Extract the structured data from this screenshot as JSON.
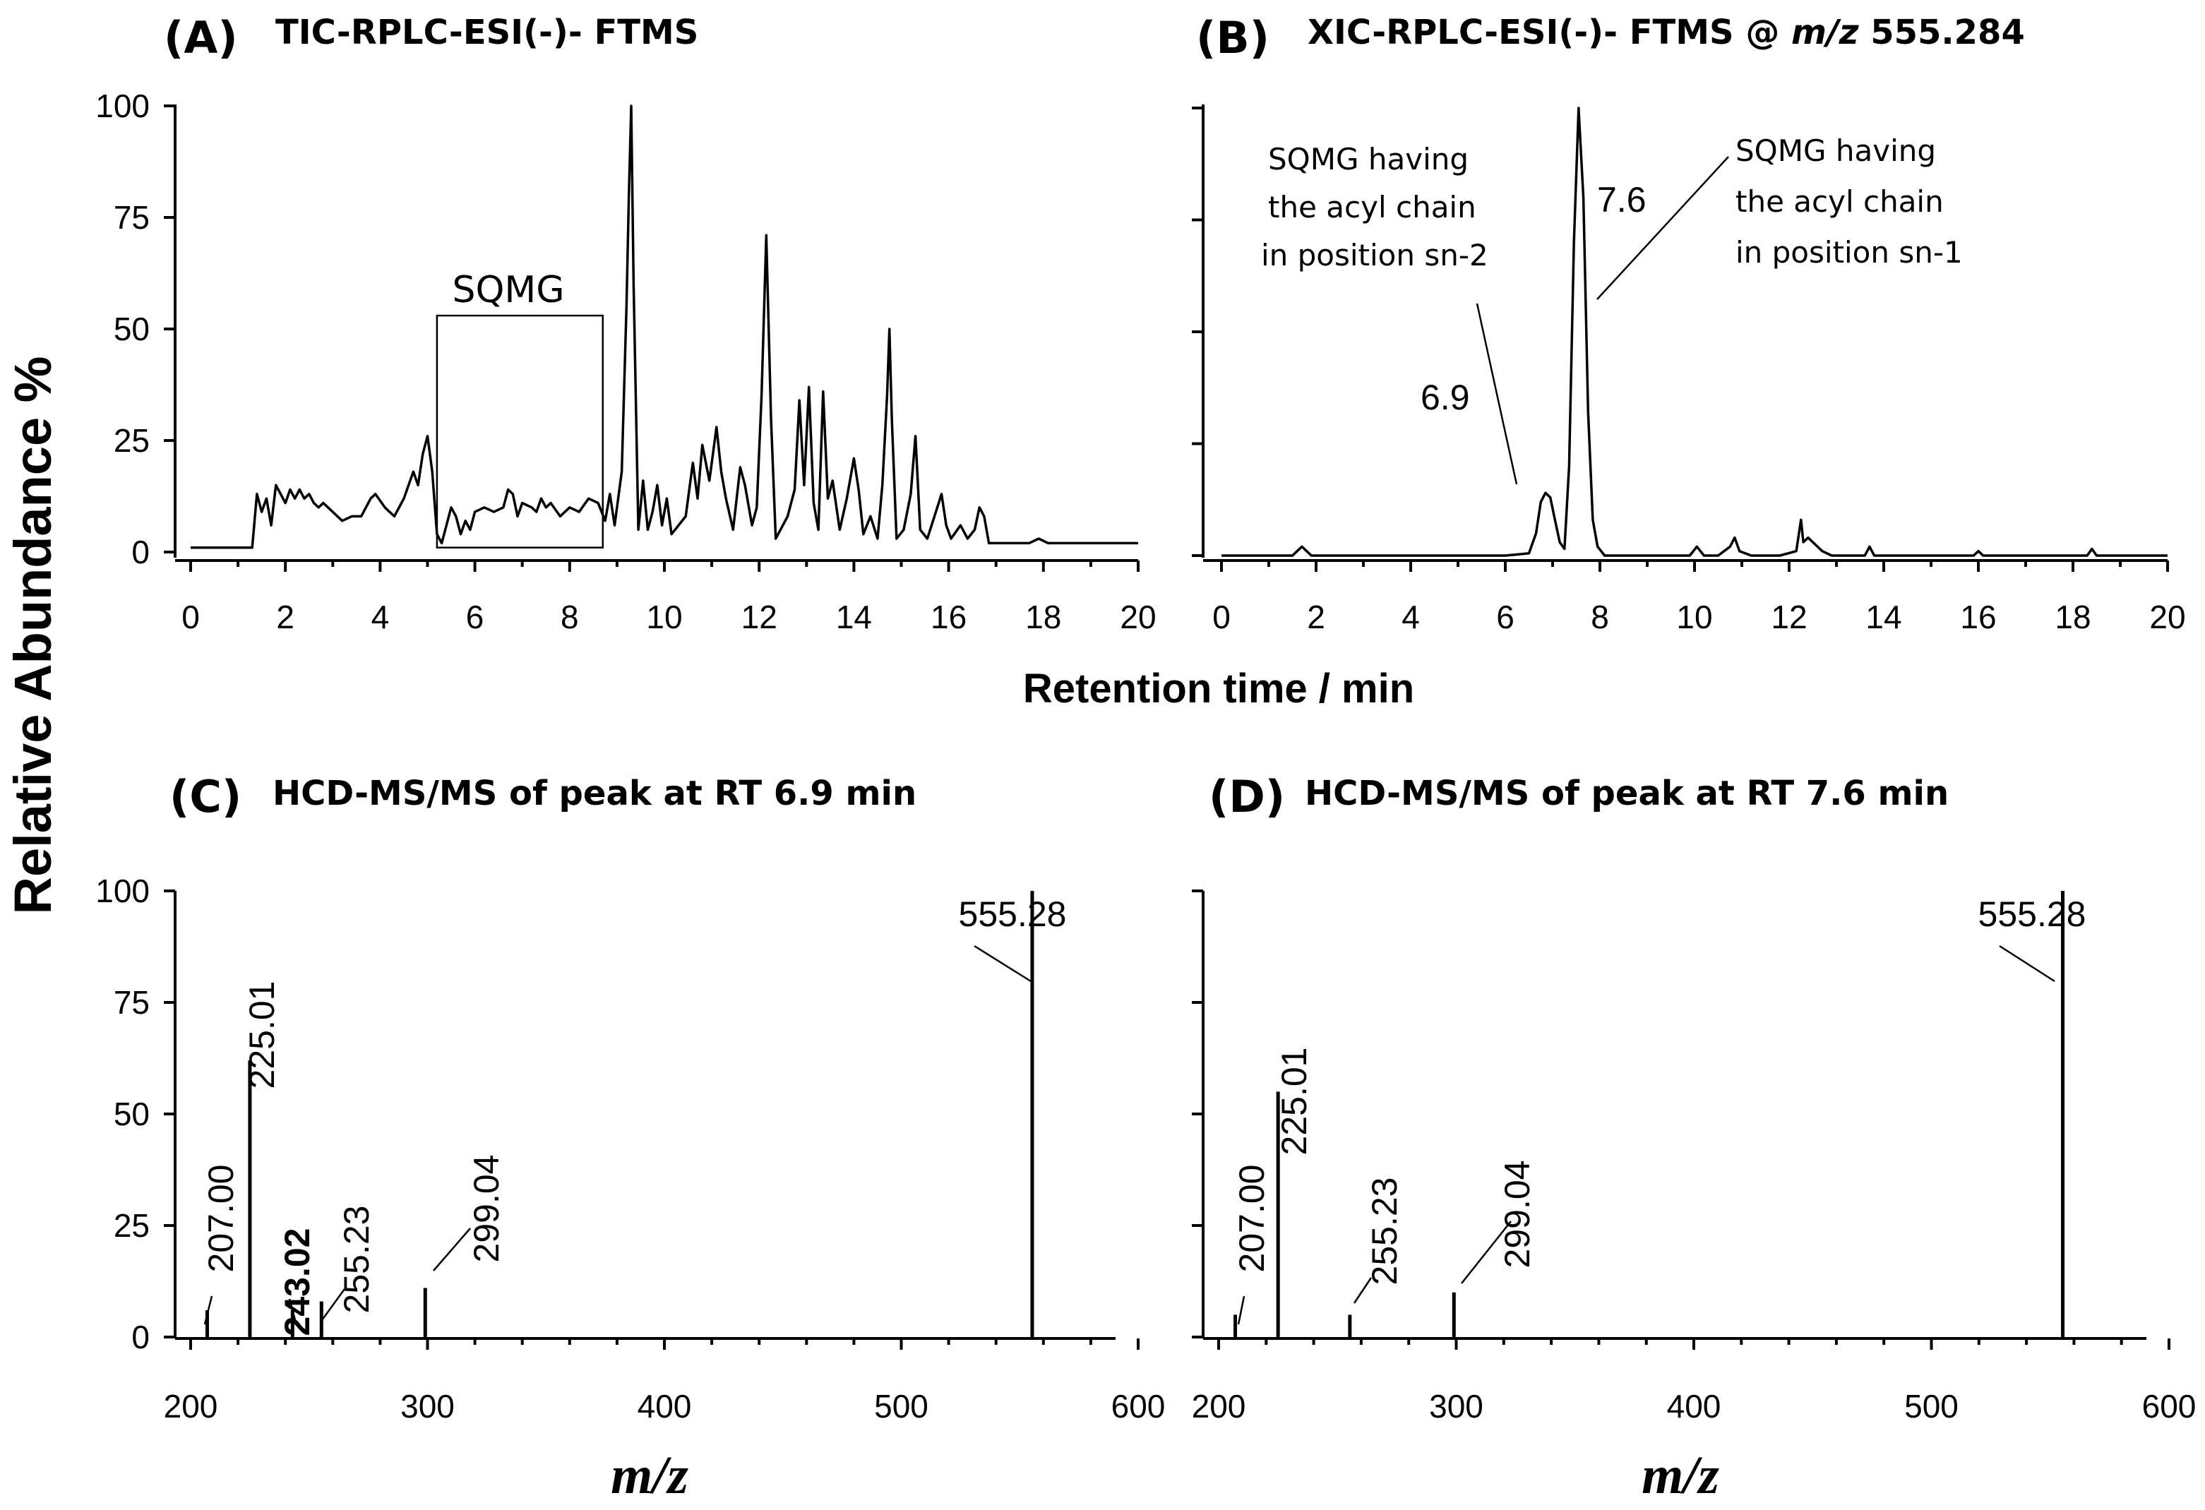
{
  "figure": {
    "y_label": "Relative Abundance %",
    "x_label_top": "Retention time / min",
    "x_label_bottom": "m/z"
  },
  "chart_data": [
    {
      "id": "A",
      "letter": "(A)",
      "title": "TIC-RPLC-ESI(-)- FTMS",
      "type": "line",
      "xlim": [
        0,
        20
      ],
      "ylim": [
        0,
        100
      ],
      "xticks": [
        0,
        2,
        4,
        6,
        8,
        10,
        12,
        14,
        16,
        18,
        20
      ],
      "yticks": [
        0,
        25,
        50,
        75,
        100
      ],
      "box_label": "SQMG",
      "box_range": {
        "x": [
          5.2,
          8.7
        ],
        "y": [
          1,
          53
        ]
      },
      "x": [
        0,
        1.3,
        1.4,
        1.5,
        1.6,
        1.7,
        1.8,
        1.9,
        2,
        2.1,
        2.2,
        2.3,
        2.4,
        2.5,
        2.6,
        2.7,
        2.8,
        2.9,
        3,
        3.2,
        3.4,
        3.6,
        3.8,
        3.9,
        4.1,
        4.3,
        4.5,
        4.7,
        4.8,
        4.9,
        5,
        5.1,
        5.2,
        5.3,
        5.4,
        5.5,
        5.6,
        5.7,
        5.8,
        5.9,
        6,
        6.2,
        6.4,
        6.6,
        6.7,
        6.8,
        6.9,
        7,
        7.2,
        7.3,
        7.4,
        7.5,
        7.6,
        7.8,
        8,
        8.2,
        8.4,
        8.6,
        8.75,
        8.85,
        8.95,
        9.1,
        9.2,
        9.25,
        9.3,
        9.35,
        9.45,
        9.55,
        9.65,
        9.75,
        9.85,
        9.95,
        10.05,
        10.15,
        10.3,
        10.45,
        10.6,
        10.7,
        10.8,
        10.95,
        11.1,
        11.2,
        11.3,
        11.45,
        11.6,
        11.7,
        11.85,
        11.95,
        12.05,
        12.15,
        12.25,
        12.35,
        12.45,
        12.6,
        12.75,
        12.85,
        12.95,
        13.05,
        13.15,
        13.25,
        13.35,
        13.45,
        13.55,
        13.7,
        13.85,
        14,
        14.1,
        14.2,
        14.35,
        14.5,
        14.6,
        14.7,
        14.75,
        14.8,
        14.9,
        15.05,
        15.2,
        15.3,
        15.4,
        15.55,
        15.7,
        15.85,
        15.95,
        16.05,
        16.25,
        16.4,
        16.55,
        16.65,
        16.75,
        16.85,
        17,
        17.3,
        17.7,
        17.9,
        18.1,
        18.5,
        19,
        19.5,
        20
      ],
      "y": [
        1,
        1,
        13,
        9,
        12,
        6,
        15,
        13,
        11,
        14,
        12,
        14,
        12,
        13,
        11,
        10,
        11,
        10,
        9,
        7,
        8,
        8,
        12,
        13,
        10,
        8,
        12,
        18,
        15,
        22,
        26,
        18,
        4,
        2,
        6,
        10,
        8,
        4,
        7,
        5,
        9,
        10,
        9,
        10,
        14,
        13,
        8,
        11,
        10,
        9,
        12,
        10,
        11,
        8,
        10,
        9,
        12,
        11,
        7,
        13,
        6,
        18,
        55,
        80,
        100,
        60,
        5,
        16,
        5,
        9,
        15,
        6,
        12,
        4,
        6,
        8,
        20,
        12,
        24,
        16,
        28,
        18,
        12,
        5,
        19,
        15,
        6,
        10,
        35,
        71,
        30,
        3,
        5,
        8,
        14,
        34,
        15,
        37,
        11,
        5,
        36,
        12,
        16,
        5,
        12,
        21,
        14,
        4,
        8,
        3,
        15,
        35,
        50,
        30,
        3,
        5,
        13,
        26,
        5,
        3,
        8,
        13,
        6,
        3,
        6,
        3,
        5,
        10,
        8,
        2,
        2,
        2,
        2,
        3,
        2,
        2,
        2,
        2,
        2
      ]
    },
    {
      "id": "B",
      "letter": "(B)",
      "title": "XIC-RPLC-ESI(-)- FTMS @ ",
      "title_mz": "m/z",
      "title_value": " 555.284",
      "type": "line",
      "xlim": [
        0,
        20
      ],
      "ylim": [
        0,
        100
      ],
      "xticks": [
        0,
        2,
        4,
        6,
        8,
        10,
        12,
        14,
        16,
        18,
        20
      ],
      "yticks": [
        0,
        25,
        50,
        75,
        100
      ],
      "annotations": [
        {
          "peak_label": "6.9",
          "lines": [
            "SQMG having",
            "the acyl chain",
            "in position sn-2"
          ]
        },
        {
          "peak_label": "7.6",
          "lines": [
            "SQMG having",
            "the acyl chain",
            "in position sn-1"
          ]
        }
      ],
      "x": [
        0,
        1.5,
        1.7,
        1.9,
        3,
        5,
        6,
        6.5,
        6.65,
        6.75,
        6.85,
        6.95,
        7.05,
        7.15,
        7.25,
        7.35,
        7.45,
        7.55,
        7.65,
        7.75,
        7.85,
        7.95,
        8.1,
        9.9,
        10.05,
        10.2,
        10.5,
        10.75,
        10.85,
        10.95,
        11.2,
        11.8,
        12.15,
        12.25,
        12.3,
        12.4,
        12.5,
        12.7,
        12.9,
        13.6,
        13.7,
        13.8,
        14.5,
        15.9,
        16,
        16.1,
        18.3,
        18.4,
        18.5,
        20
      ],
      "y": [
        0,
        0,
        2,
        0,
        0,
        0,
        0,
        0.5,
        5,
        12,
        14,
        13,
        8,
        3,
        1.5,
        20,
        70,
        100,
        80,
        32,
        8,
        2,
        0,
        0,
        2,
        0,
        0,
        2,
        4,
        1,
        0,
        0,
        1,
        8,
        3,
        4,
        3,
        1,
        0,
        0,
        2,
        0,
        0,
        0,
        1,
        0,
        0,
        1.5,
        0,
        0
      ]
    },
    {
      "id": "C",
      "letter": "(C)",
      "title": "HCD-MS/MS of peak at RT 6.9 min",
      "type": "bar",
      "xlim": [
        200,
        600
      ],
      "ylim": [
        0,
        100
      ],
      "xticks": [
        200,
        300,
        400,
        500,
        600
      ],
      "yticks": [
        0,
        25,
        50,
        75,
        100
      ],
      "peaks": [
        {
          "mz": 207.0,
          "intensity": 6,
          "label": "207.00",
          "bold": false
        },
        {
          "mz": 225.01,
          "intensity": 62,
          "label": "225.01",
          "bold": false
        },
        {
          "mz": 243.02,
          "intensity": 6,
          "label": "243.02",
          "bold": true
        },
        {
          "mz": 255.23,
          "intensity": 8,
          "label": "255.23",
          "bold": false
        },
        {
          "mz": 299.04,
          "intensity": 11,
          "label": "299.04",
          "bold": false
        },
        {
          "mz": 555.28,
          "intensity": 100,
          "label": "555.28",
          "bold": false
        }
      ]
    },
    {
      "id": "D",
      "letter": "(D)",
      "title": "HCD-MS/MS of peak at RT 7.6 min",
      "type": "bar",
      "xlim": [
        200,
        600
      ],
      "ylim": [
        0,
        100
      ],
      "xticks": [
        200,
        300,
        400,
        500,
        600
      ],
      "yticks": [
        0,
        25,
        50,
        75,
        100
      ],
      "peaks": [
        {
          "mz": 207.0,
          "intensity": 5,
          "label": "207.00",
          "bold": false
        },
        {
          "mz": 225.01,
          "intensity": 55,
          "label": "225.01",
          "bold": false
        },
        {
          "mz": 255.23,
          "intensity": 5,
          "label": "255.23",
          "bold": false
        },
        {
          "mz": 299.04,
          "intensity": 10,
          "label": "299.04",
          "bold": false
        },
        {
          "mz": 555.28,
          "intensity": 100,
          "label": "555.28",
          "bold": false
        }
      ]
    }
  ]
}
